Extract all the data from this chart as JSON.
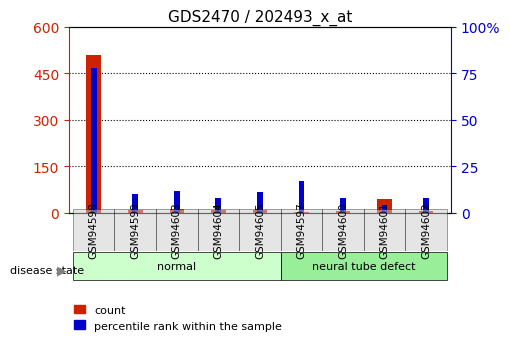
{
  "title": "GDS2470 / 202493_x_at",
  "categories": [
    "GSM94598",
    "GSM94599",
    "GSM94603",
    "GSM94604",
    "GSM94605",
    "GSM94597",
    "GSM94600",
    "GSM94601",
    "GSM94602"
  ],
  "counts": [
    510,
    8,
    12,
    10,
    8,
    4,
    5,
    45,
    5
  ],
  "percentiles": [
    78,
    10,
    12,
    8,
    11,
    17,
    8,
    4,
    8
  ],
  "ylim_left": [
    0,
    600
  ],
  "ylim_right": [
    0,
    100
  ],
  "yticks_left": [
    0,
    150,
    300,
    450,
    600
  ],
  "yticks_right": [
    0,
    25,
    50,
    75,
    100
  ],
  "bar_color_count": "#cc2200",
  "bar_color_pct": "#0000cc",
  "group_labels": [
    "normal",
    "neural tube defect"
  ],
  "group_ranges": [
    [
      0,
      5
    ],
    [
      5,
      9
    ]
  ],
  "group_colors": [
    "#ccffcc",
    "#99ee99"
  ],
  "disease_label": "disease state",
  "legend_count": "count",
  "legend_pct": "percentile rank within the sample",
  "background_color": "#ffffff",
  "tick_area_color": "#dddddd",
  "grid_color": "#000000"
}
